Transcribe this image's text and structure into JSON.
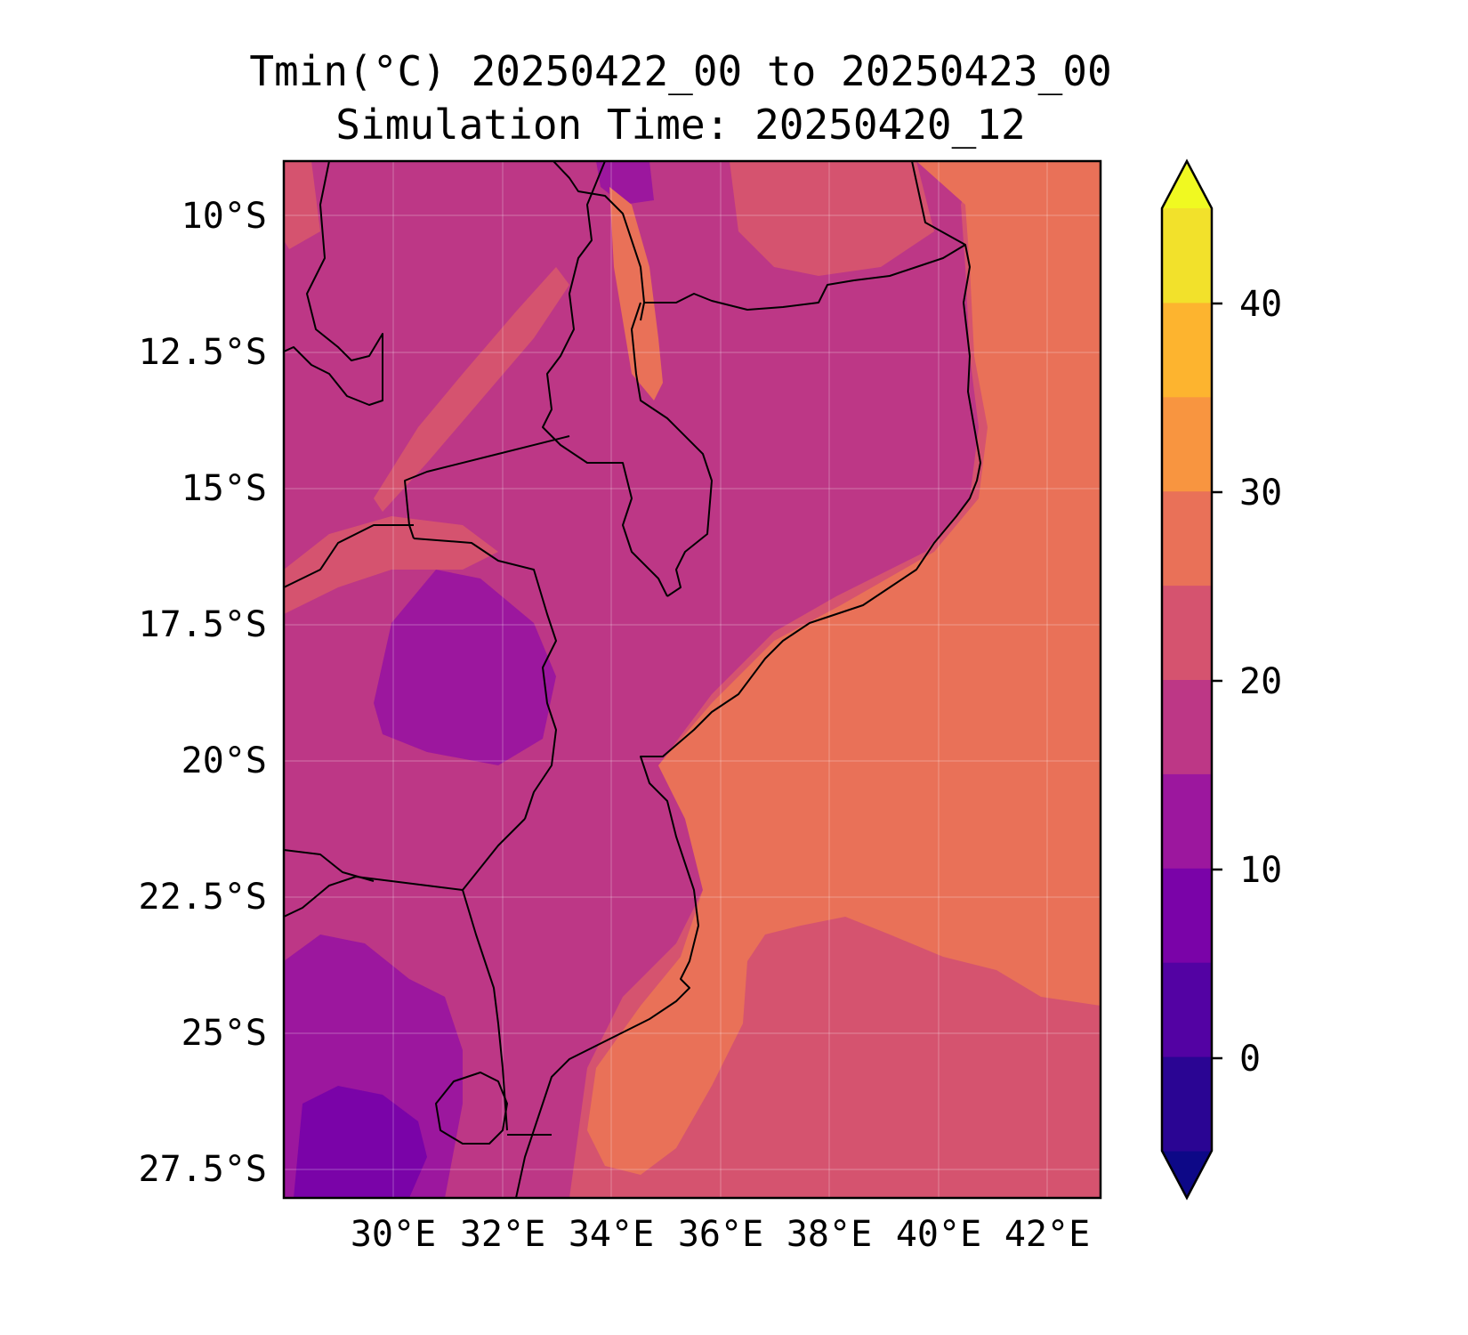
{
  "title": "Tmin(°C) 20250422_00 to 20250423_00",
  "subtitle": "Simulation Time: 20250420_12",
  "map": {
    "lat_ticks": [
      "10°S",
      "12.5°S",
      "15°S",
      "17.5°S",
      "20°S",
      "22.5°S",
      "25°S",
      "27.5°S"
    ],
    "lon_ticks": [
      "30°E",
      "32°E",
      "34°E",
      "36°E",
      "38°E",
      "40°E",
      "42°E"
    ],
    "gridlines": true,
    "region": "Southeastern Africa / Mozambique Channel"
  },
  "colorbar": {
    "ticks": [
      "0",
      "10",
      "20",
      "30",
      "40"
    ],
    "levels": [
      -5,
      0,
      5,
      10,
      15,
      20,
      25,
      30,
      35,
      40,
      45
    ],
    "extend": "both",
    "colors": [
      "#0d0887",
      "#2a0593",
      "#5302a3",
      "#7a03a8",
      "#9c179e",
      "#bd3786",
      "#d5536f",
      "#e97158",
      "#f89540",
      "#fdb42f",
      "#f2e12b",
      "#f0f921"
    ]
  }
}
